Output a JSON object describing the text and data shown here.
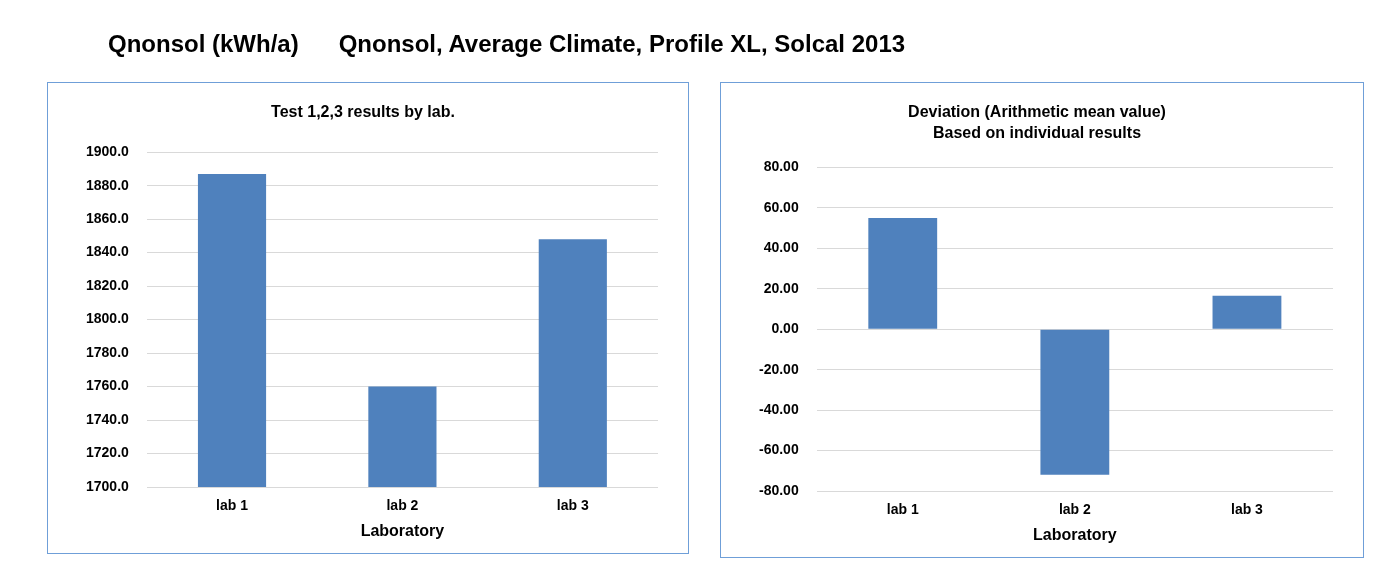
{
  "chart_data": [
    {
      "type": "bar",
      "title": "Test 1,2,3 results by lab.",
      "annotations": [
        "Qnonsol (kWh/a)",
        "Qnonsol, Average Climate, Profile XL, Solcal 2013"
      ],
      "xlabel": "Laboratory",
      "categories": [
        "lab 1",
        "lab 2",
        "lab 3"
      ],
      "values": [
        1887,
        1760,
        1848
      ],
      "color": "#4f81bd",
      "ylim": [
        1700,
        1900
      ],
      "yticks": [
        {
          "value": 1700,
          "label": "1700.0"
        },
        {
          "value": 1720,
          "label": "1720.0"
        },
        {
          "value": 1740,
          "label": "1740.0"
        },
        {
          "value": 1760,
          "label": "1760.0"
        },
        {
          "value": 1780,
          "label": "1780.0"
        },
        {
          "value": 1800,
          "label": "1800.0"
        },
        {
          "value": 1820,
          "label": "1820.0"
        },
        {
          "value": 1840,
          "label": "1840.0"
        },
        {
          "value": 1860,
          "label": "1860.0"
        },
        {
          "value": 1880,
          "label": "1880.0"
        },
        {
          "value": 1900,
          "label": "1900.0"
        }
      ],
      "grid": "y"
    },
    {
      "type": "bar",
      "title": "Deviation (Arithmetic mean value)",
      "subtitle": "Based on individual results",
      "xlabel": "Laboratory",
      "categories": [
        "lab 1",
        "lab 2",
        "lab 3"
      ],
      "values": [
        55,
        -72,
        16.5
      ],
      "color": "#4f81bd",
      "ylim": [
        -80,
        80
      ],
      "yticks": [
        {
          "value": -80,
          "label": "-80.00"
        },
        {
          "value": -60,
          "label": "-60.00"
        },
        {
          "value": -40,
          "label": "-40.00"
        },
        {
          "value": -20,
          "label": "-20.00"
        },
        {
          "value": 0,
          "label": "0.00"
        },
        {
          "value": 20,
          "label": "20.00"
        },
        {
          "value": 40,
          "label": "40.00"
        },
        {
          "value": 60,
          "label": "60.00"
        },
        {
          "value": 80,
          "label": "80.00"
        }
      ],
      "grid": "y"
    }
  ]
}
